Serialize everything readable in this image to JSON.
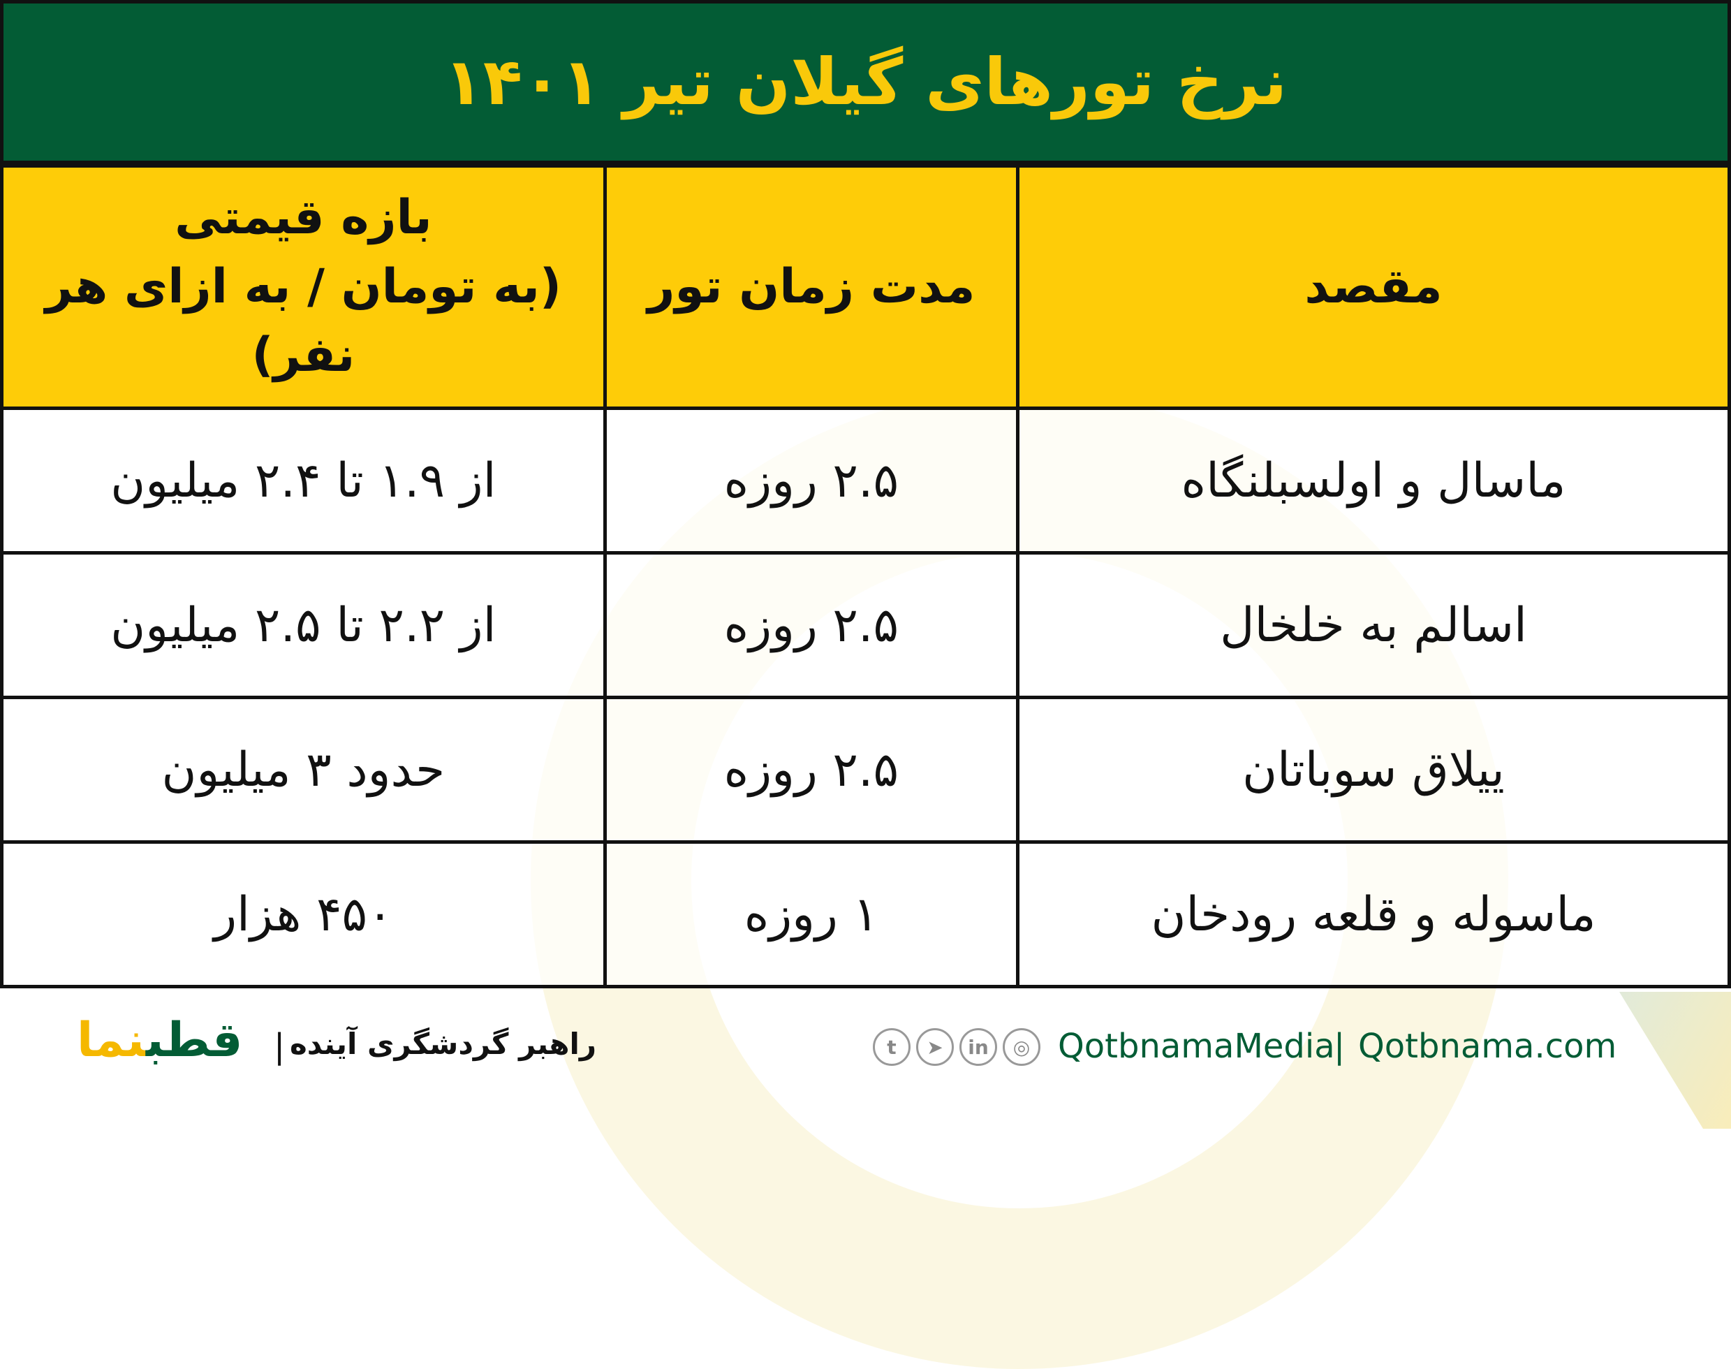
{
  "title": "نرخ تورهای گیلان تیر ۱۴۰۱",
  "colors": {
    "header_bg": "#035c35",
    "title_text": "#f9c90a",
    "column_header_bg": "#fecc08"
  },
  "table": {
    "headers": [
      "مقصد",
      "مدت زمان تور",
      "بازه قیمتی",
      "(به تومان / به ازای هر نفر)"
    ],
    "rows": [
      {
        "destination": "ماسال و اولسبلنگاه",
        "duration": "۲.۵ روزه",
        "price": "از ۱.۹ تا ۲.۴ میلیون"
      },
      {
        "destination": "اسالم به خلخال",
        "duration": "۲.۵ روزه",
        "price": "از ۲.۲ تا ۲.۵ میلیون"
      },
      {
        "destination": "ییلاق سوباتان",
        "duration": "۲.۵ روزه",
        "price": "حدود ۳ میلیون"
      },
      {
        "destination": "ماسوله و قلعه رودخان",
        "duration": "۱ روزه",
        "price": "۴۵۰ هزار"
      }
    ]
  },
  "footer": {
    "logo_green": "قطب",
    "logo_yellow": "نما",
    "slogan": "راهبر گردشگری آینده",
    "separator": "|",
    "social_icons": [
      "twitter-icon",
      "telegram-icon",
      "linkedin-icon",
      "instagram-icon"
    ],
    "handle": "QotbnamaMedia",
    "website": "Qotbnama.com"
  }
}
